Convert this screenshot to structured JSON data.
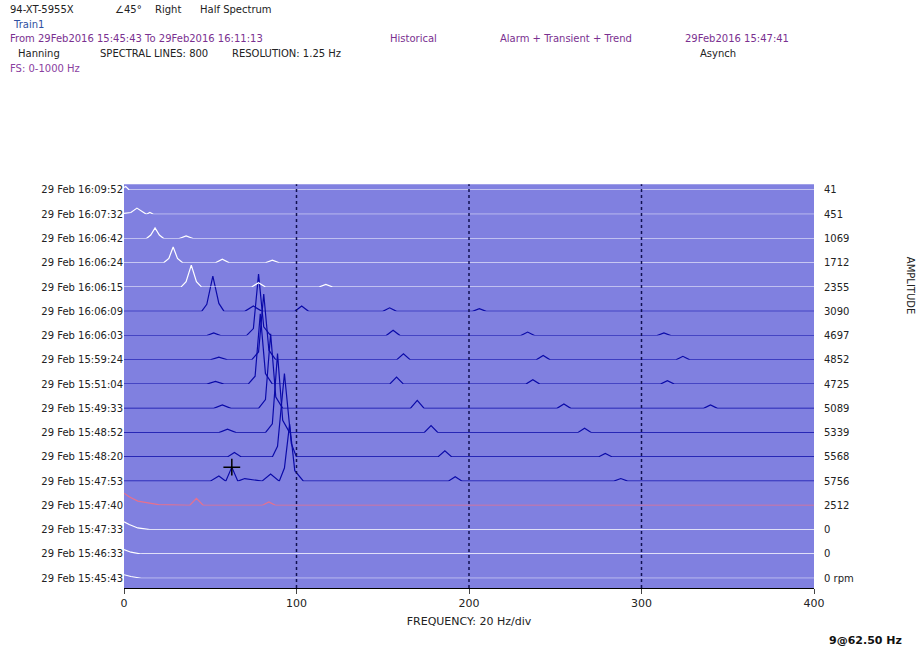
{
  "chart_data": {
    "type": "waterfall",
    "header": {
      "line1": [
        "94-XT-5955X",
        "∠45°",
        "Right",
        "Half Spectrum"
      ],
      "line2": [
        "Train1"
      ],
      "line3": [
        "From 29Feb2016 15:45:43 To 29Feb2016 16:11:13",
        "Historical",
        "Alarm + Transient + Trend",
        "29Feb2016 15:47:41"
      ],
      "line4": [
        "Hanning",
        "SPECTRAL LINES: 800",
        "RESOLUTION: 1.25 Hz",
        "Asynch"
      ],
      "line5": [
        "FS: 0-1000 Hz"
      ]
    },
    "x_label": "FREQUENCY: 20 Hz/div",
    "amplitude_label": "AMPLITUDE",
    "xlim": [
      0,
      400
    ],
    "xticks": [
      0,
      100,
      200,
      300,
      400
    ],
    "ylim": [
      0,
      10
    ],
    "grid": true,
    "color": "#ffffff",
    "rows": [
      {
        "time": "29 Feb 15:45:43",
        "rpm": 0,
        "rpm_label": "0 rpm",
        "x": [
          0,
          4,
          10,
          400
        ],
        "values": [
          0.4,
          0.2,
          0,
          0
        ]
      },
      {
        "time": "29 Feb 15:46:33",
        "rpm": 0,
        "x": [
          0,
          4,
          10,
          400
        ],
        "values": [
          0.5,
          0.2,
          0,
          0
        ]
      },
      {
        "time": "29 Feb 15:47:33",
        "rpm": 0,
        "x": [
          0,
          3,
          8,
          15,
          400
        ],
        "values": [
          0.9,
          0.6,
          0.2,
          0,
          0
        ]
      },
      {
        "time": "29 Feb 15:47:40",
        "rpm": 2512,
        "color": "#e8708c",
        "x": [
          0,
          3,
          8,
          20,
          38,
          42,
          46,
          80,
          84,
          88,
          400
        ],
        "values": [
          1.4,
          1.0,
          0.5,
          0.1,
          0,
          0.8,
          0,
          0,
          0.4,
          0,
          0
        ]
      },
      {
        "time": "29 Feb 15:47:53",
        "rpm": 5756,
        "color": "#0a0aa8",
        "x": [
          0,
          50,
          55,
          59,
          62.5,
          66,
          70,
          80,
          85,
          90,
          93,
          96,
          99,
          104,
          188,
          192,
          196,
          284,
          288,
          292,
          400
        ],
        "values": [
          0,
          0,
          0.6,
          0,
          1.6,
          0,
          0.3,
          0,
          0.8,
          0,
          1.5,
          6.5,
          1.2,
          0,
          0,
          0.5,
          0,
          0,
          0.3,
          0,
          0
        ]
      },
      {
        "time": "29 Feb 15:48:20",
        "rpm": 5568,
        "color": "#0a0aa8",
        "x": [
          0,
          60,
          64,
          68,
          86,
          89,
          93,
          97,
          100,
          182,
          186,
          190,
          275,
          279,
          283,
          400
        ],
        "values": [
          0,
          0,
          0.5,
          0,
          0,
          1.2,
          9.5,
          1.5,
          0,
          0,
          0.7,
          0,
          0,
          0.4,
          0,
          0
        ]
      },
      {
        "time": "29 Feb 15:48:52",
        "rpm": 5339,
        "color": "#0a0aa8",
        "x": [
          0,
          55,
          60,
          65,
          82,
          86,
          89,
          92,
          96,
          174,
          178,
          182,
          263,
          267,
          271,
          400
        ],
        "values": [
          0,
          0,
          0.4,
          0,
          0,
          1.0,
          9.0,
          1.4,
          0,
          0,
          0.8,
          0,
          0,
          0.5,
          0,
          0
        ]
      },
      {
        "time": "29 Feb 15:49:33",
        "rpm": 5089,
        "color": "#0a0aa8",
        "x": [
          0,
          52,
          57,
          62,
          78,
          82,
          85,
          88,
          92,
          166,
          170,
          174,
          251,
          255,
          259,
          336,
          340,
          344,
          400
        ],
        "values": [
          0,
          0,
          0.4,
          0,
          0,
          1.0,
          8.5,
          1.3,
          0,
          0,
          0.9,
          0,
          0,
          0.5,
          0,
          0,
          0.4,
          0,
          0
        ]
      },
      {
        "time": "29 Feb 15:51:04",
        "rpm": 4725,
        "color": "#0a0aa8",
        "x": [
          0,
          48,
          53,
          58,
          72,
          76,
          79,
          82,
          86,
          154,
          158,
          162,
          233,
          237,
          241,
          311,
          315,
          319,
          400
        ],
        "values": [
          0,
          0,
          0.3,
          0,
          0,
          0.9,
          8.0,
          1.2,
          0,
          0,
          0.8,
          0,
          0,
          0.5,
          0,
          0,
          0.4,
          0,
          0
        ]
      },
      {
        "time": "29 Feb 15:59:24",
        "rpm": 4852,
        "color": "#0a0aa8",
        "x": [
          0,
          50,
          55,
          60,
          74,
          78,
          81,
          84,
          88,
          158,
          162,
          166,
          239,
          243,
          247,
          320,
          324,
          328,
          400
        ],
        "values": [
          0,
          0,
          0.3,
          0,
          0,
          0.9,
          7.5,
          1.1,
          0,
          0,
          0.7,
          0,
          0,
          0.5,
          0,
          0,
          0.4,
          0,
          0
        ]
      },
      {
        "time": "29 Feb 16:06:03",
        "rpm": 4697,
        "color": "#0a0aa8",
        "x": [
          0,
          48,
          52,
          56,
          71,
          75,
          78,
          81,
          85,
          152,
          156,
          160,
          230,
          234,
          238,
          309,
          313,
          317,
          400
        ],
        "values": [
          0,
          0,
          0.3,
          0,
          0,
          0.8,
          7.0,
          1.0,
          0,
          0,
          0.6,
          0,
          0,
          0.4,
          0,
          0,
          0.3,
          0,
          0
        ]
      },
      {
        "time": "29 Feb 16:06:09",
        "rpm": 3090,
        "color": "#0a0aa8",
        "x": [
          0,
          45,
          48,
          51.5,
          55,
          58,
          70,
          75,
          80,
          99,
          103,
          107,
          150,
          154,
          158,
          202,
          206,
          210,
          400
        ],
        "values": [
          0,
          0,
          0.8,
          4.0,
          0.9,
          0,
          0,
          0.6,
          0,
          0,
          0.6,
          0,
          0,
          0.4,
          0,
          0,
          0.3,
          0,
          0
        ]
      },
      {
        "time": "29 Feb 16:06:15",
        "rpm": 2355,
        "x": [
          0,
          33,
          36,
          39,
          42,
          45,
          74,
          78,
          82,
          113,
          117,
          121,
          400
        ],
        "values": [
          0,
          0,
          0.6,
          2.5,
          0.6,
          0,
          0,
          0.5,
          0,
          0,
          0.3,
          0,
          0
        ]
      },
      {
        "time": "29 Feb 16:06:24",
        "rpm": 1712,
        "x": [
          0,
          23,
          26,
          28.5,
          31,
          34,
          53,
          57,
          61,
          82,
          86,
          90,
          400
        ],
        "values": [
          0,
          0,
          0.5,
          1.8,
          0.5,
          0,
          0,
          0.4,
          0,
          0,
          0.3,
          0,
          0
        ]
      },
      {
        "time": "29 Feb 16:06:42",
        "rpm": 1069,
        "x": [
          0,
          13,
          15.5,
          18,
          20.5,
          23,
          32,
          36,
          40,
          400
        ],
        "values": [
          0,
          0,
          0.4,
          1.2,
          0.4,
          0,
          0,
          0.3,
          0,
          0
        ]
      },
      {
        "time": "29 Feb 16:07:32",
        "rpm": 451,
        "x": [
          0,
          4,
          7.5,
          11,
          13,
          15,
          17,
          400
        ],
        "values": [
          0.1,
          0.2,
          0.7,
          0.2,
          0,
          0.2,
          0,
          0
        ]
      },
      {
        "time": "29 Feb 16:09:52",
        "rpm": 41,
        "x": [
          0,
          1,
          3,
          400
        ],
        "values": [
          0.3,
          0.4,
          0,
          0
        ]
      }
    ],
    "cursor": {
      "row": 4,
      "x": 62.5,
      "value": 1.6,
      "label": "9@62.50 Hz",
      "marker": "cross"
    }
  }
}
